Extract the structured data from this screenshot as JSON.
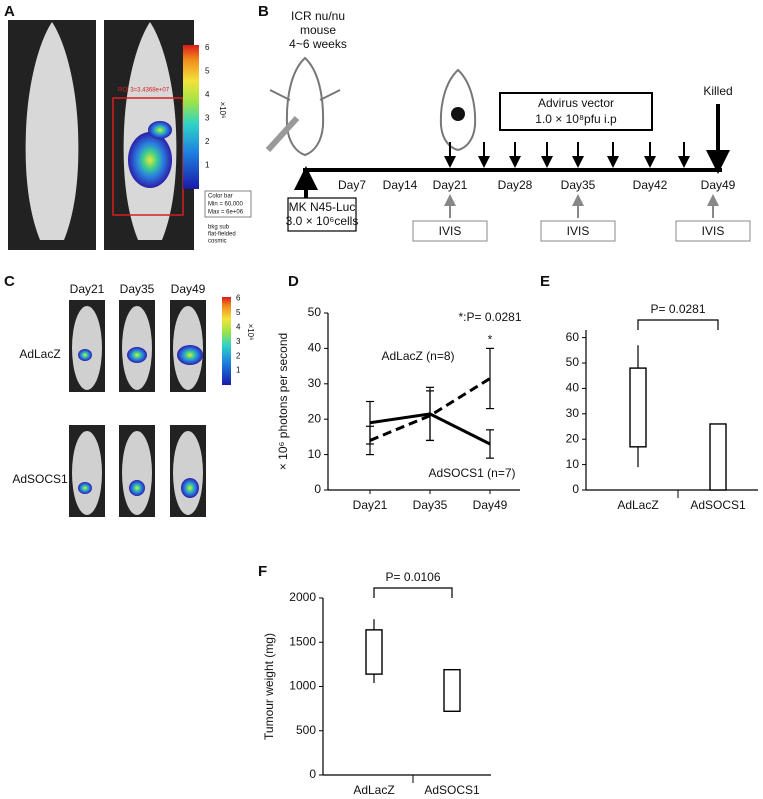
{
  "panel_a": {
    "label": "A",
    "roi": "ROI 3=3.4368e+07",
    "colorbar_ticks": [
      1,
      2,
      3,
      4,
      5,
      6
    ],
    "unit": "×10⁶",
    "colorbar_note": [
      "Color bar",
      "Min = 60,000",
      "Max = 6e+06"
    ],
    "processing": [
      "bkg sub",
      "flat-fielded",
      "cosmic"
    ]
  },
  "panel_b": {
    "label": "B",
    "mouse": [
      "ICR nu/nu",
      "mouse",
      "4~6 weeks"
    ],
    "vector": [
      "Advirus vector",
      "1.0 × 10⁸pfu i.p"
    ],
    "killed": "Killed",
    "cells": [
      "MK N45-Luc",
      "3.0 × 10⁶cells"
    ],
    "days": [
      "Day7",
      "Day14",
      "Day21",
      "Day28",
      "Day35",
      "Day42",
      "Day49"
    ],
    "imaging": [
      "IVIS",
      "IVIS",
      "IVIS"
    ]
  },
  "panel_c": {
    "label": "C",
    "columns": [
      "Day21",
      "Day35",
      "Day49"
    ],
    "rows": [
      "AdLacZ",
      "AdSOCS1"
    ],
    "colorbar_ticks": [
      1,
      2,
      3,
      4,
      5,
      6
    ],
    "unit": "×10⁶"
  },
  "chart_data": [
    {
      "type": "line",
      "panel": "D",
      "ylabel": "× 10⁶ photons per second",
      "annotations": [
        "*:P= 0.0281",
        "*"
      ],
      "categories": [
        "Day21",
        "Day35",
        "Day49"
      ],
      "series": [
        {
          "name": "AdLacZ (n=8)",
          "color": "#000000",
          "line_style": "dashed",
          "values": [
            14,
            21,
            31.5
          ],
          "errors": [
            4,
            7,
            8.5
          ]
        },
        {
          "name": "AdSOCS1 (n=7)",
          "color": "#000000",
          "line_style": "solid",
          "values": [
            19,
            21.5,
            13
          ],
          "errors": [
            6,
            7.5,
            4
          ]
        }
      ],
      "ylim": [
        0,
        50
      ],
      "yticks": [
        0,
        10,
        20,
        30,
        40,
        50
      ]
    },
    {
      "type": "box",
      "panel": "E",
      "annotation": "P= 0.0281",
      "categories": [
        "AdLacZ",
        "AdSOCS1"
      ],
      "boxes": [
        {
          "min": 9,
          "q1": 17,
          "q3": 48,
          "max": 57
        },
        {
          "q1": 0,
          "q3": 26
        }
      ],
      "ylim": [
        0,
        63
      ],
      "yticks": [
        0,
        10,
        20,
        30,
        40,
        50,
        60
      ]
    },
    {
      "type": "box",
      "panel": "F",
      "ylabel": "Tumour weight (mg)",
      "annotation": "P= 0.0106",
      "categories": [
        "AdLacZ",
        "AdSOCS1"
      ],
      "boxes": [
        {
          "min": 1040,
          "q1": 1140,
          "q3": 1640,
          "max": 1760
        },
        {
          "q1": 720,
          "q3": 1190
        }
      ],
      "ylim": [
        0,
        2000
      ],
      "yticks": [
        0,
        500,
        1000,
        1500,
        2000
      ]
    }
  ]
}
